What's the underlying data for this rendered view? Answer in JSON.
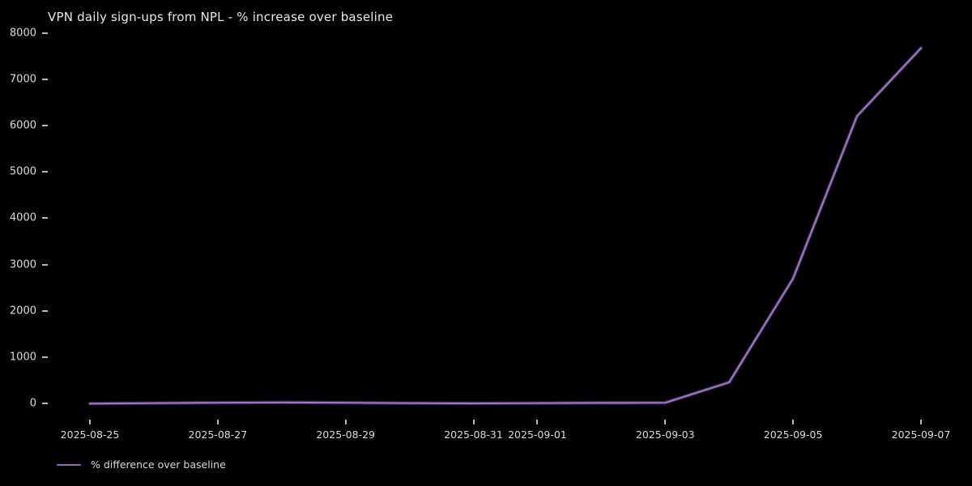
{
  "chart_data": {
    "type": "line",
    "title": "VPN daily sign-ups from NPL - % increase over baseline",
    "x": [
      "2025-08-25",
      "2025-08-26",
      "2025-08-27",
      "2025-08-28",
      "2025-08-29",
      "2025-08-30",
      "2025-08-31",
      "2025-09-01",
      "2025-09-02",
      "2025-09-03",
      "2025-09-04",
      "2025-09-05",
      "2025-09-06",
      "2025-09-07"
    ],
    "series": [
      {
        "name": "% difference over baseline",
        "values": [
          0,
          10,
          20,
          25,
          20,
          10,
          5,
          10,
          15,
          20,
          460,
          2700,
          6200,
          7670
        ]
      }
    ],
    "x_tick_labels": [
      "2025-08-25",
      "2025-08-27",
      "2025-08-29",
      "2025-08-31",
      "2025-09-01",
      "2025-09-03",
      "2025-09-05",
      "2025-09-07"
    ],
    "y_ticks": [
      0,
      1000,
      2000,
      3000,
      4000,
      5000,
      6000,
      7000,
      8000
    ],
    "ylim": [
      -380,
      8060
    ],
    "xlabel": "",
    "ylabel": "",
    "grid": false,
    "legend_position": "lower-left",
    "line_color": "#9467bd",
    "background_color": "#000000",
    "tick_color": "#b9b9b9",
    "text_color": "#dcdcdc"
  }
}
